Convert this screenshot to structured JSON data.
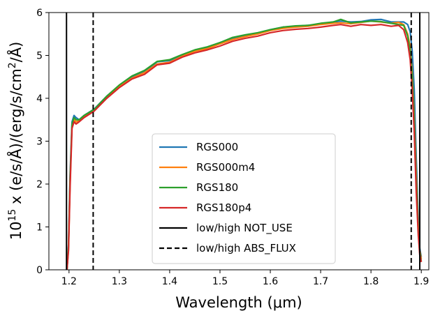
{
  "chart_data": {
    "type": "line",
    "title": "",
    "xlabel": "Wavelength (μm)",
    "ylabel": "10^15 x (e/s/Å)/(erg/s/cm^2/Å)",
    "xlim": [
      1.16,
      1.915
    ],
    "ylim": [
      0,
      6
    ],
    "xticks": [
      1.2,
      1.3,
      1.4,
      1.5,
      1.6,
      1.7,
      1.8,
      1.9
    ],
    "xtick_labels": [
      "1.2",
      "1.3",
      "1.4",
      "1.5",
      "1.6",
      "1.7",
      "1.8",
      "1.9"
    ],
    "yticks": [
      0,
      1,
      2,
      3,
      4,
      5,
      6
    ],
    "ytick_labels": [
      "0",
      "1",
      "2",
      "3",
      "4",
      "5",
      "6"
    ],
    "grid": false,
    "legend_position": "lower-center",
    "series": [
      {
        "name": "RGS000",
        "color": "#1f77b4",
        "x": [
          1.196,
          1.199,
          1.202,
          1.206,
          1.21,
          1.214,
          1.22,
          1.23,
          1.25,
          1.275,
          1.3,
          1.325,
          1.35,
          1.375,
          1.4,
          1.425,
          1.45,
          1.475,
          1.5,
          1.525,
          1.55,
          1.575,
          1.6,
          1.625,
          1.65,
          1.675,
          1.7,
          1.725,
          1.74,
          1.76,
          1.78,
          1.8,
          1.82,
          1.84,
          1.855,
          1.865,
          1.873,
          1.878,
          1.882,
          1.886,
          1.89,
          1.894,
          1.897,
          1.9
        ],
        "y": [
          0.0,
          0.6,
          2.2,
          3.45,
          3.6,
          3.55,
          3.5,
          3.6,
          3.75,
          4.05,
          4.3,
          4.5,
          4.62,
          4.85,
          4.88,
          5.0,
          5.12,
          5.18,
          5.3,
          5.4,
          5.47,
          5.52,
          5.6,
          5.66,
          5.68,
          5.7,
          5.73,
          5.78,
          5.8,
          5.78,
          5.79,
          5.83,
          5.84,
          5.78,
          5.78,
          5.78,
          5.72,
          5.55,
          5.1,
          4.2,
          2.6,
          1.2,
          0.5,
          0.3
        ]
      },
      {
        "name": "RGS000m4",
        "color": "#ff7f0e",
        "x": [
          1.196,
          1.199,
          1.202,
          1.206,
          1.21,
          1.214,
          1.22,
          1.23,
          1.25,
          1.275,
          1.3,
          1.325,
          1.35,
          1.375,
          1.4,
          1.425,
          1.45,
          1.475,
          1.5,
          1.525,
          1.55,
          1.575,
          1.6,
          1.625,
          1.65,
          1.675,
          1.7,
          1.725,
          1.74,
          1.76,
          1.78,
          1.8,
          1.82,
          1.84,
          1.855,
          1.865,
          1.873,
          1.878,
          1.882,
          1.886,
          1.89,
          1.894,
          1.897,
          1.9
        ],
        "y": [
          0.0,
          0.5,
          2.0,
          3.35,
          3.5,
          3.45,
          3.48,
          3.58,
          3.72,
          4.02,
          4.27,
          4.47,
          4.6,
          4.8,
          4.84,
          4.98,
          5.1,
          5.16,
          5.27,
          5.37,
          5.44,
          5.5,
          5.58,
          5.63,
          5.66,
          5.68,
          5.72,
          5.75,
          5.76,
          5.74,
          5.77,
          5.8,
          5.78,
          5.75,
          5.77,
          5.72,
          5.5,
          5.2,
          4.6,
          3.6,
          2.2,
          1.0,
          0.45,
          0.25
        ]
      },
      {
        "name": "RGS180",
        "color": "#2ca02c",
        "x": [
          1.196,
          1.199,
          1.202,
          1.206,
          1.21,
          1.214,
          1.22,
          1.23,
          1.25,
          1.275,
          1.3,
          1.325,
          1.35,
          1.375,
          1.4,
          1.425,
          1.45,
          1.475,
          1.5,
          1.525,
          1.55,
          1.575,
          1.6,
          1.625,
          1.65,
          1.675,
          1.7,
          1.725,
          1.74,
          1.76,
          1.78,
          1.8,
          1.82,
          1.84,
          1.855,
          1.865,
          1.873,
          1.878,
          1.882,
          1.886,
          1.89,
          1.894,
          1.897,
          1.9
        ],
        "y": [
          0.0,
          0.55,
          2.1,
          3.4,
          3.55,
          3.5,
          3.5,
          3.6,
          3.74,
          4.05,
          4.31,
          4.52,
          4.65,
          4.86,
          4.9,
          5.02,
          5.13,
          5.2,
          5.3,
          5.42,
          5.48,
          5.53,
          5.6,
          5.66,
          5.69,
          5.7,
          5.75,
          5.78,
          5.84,
          5.76,
          5.78,
          5.8,
          5.79,
          5.75,
          5.72,
          5.7,
          5.45,
          5.1,
          4.5,
          3.5,
          2.0,
          0.9,
          0.4,
          0.2
        ]
      },
      {
        "name": "RGS180p4",
        "color": "#d62728",
        "x": [
          1.196,
          1.199,
          1.202,
          1.206,
          1.21,
          1.214,
          1.22,
          1.23,
          1.25,
          1.275,
          1.3,
          1.325,
          1.35,
          1.375,
          1.4,
          1.425,
          1.45,
          1.475,
          1.5,
          1.525,
          1.55,
          1.575,
          1.6,
          1.625,
          1.65,
          1.675,
          1.7,
          1.725,
          1.74,
          1.76,
          1.78,
          1.8,
          1.82,
          1.84,
          1.855,
          1.865,
          1.873,
          1.878,
          1.882,
          1.886,
          1.89,
          1.894,
          1.897,
          1.9
        ],
        "y": [
          0.0,
          0.45,
          1.9,
          3.3,
          3.45,
          3.4,
          3.45,
          3.55,
          3.7,
          4.0,
          4.25,
          4.45,
          4.56,
          4.78,
          4.82,
          4.96,
          5.06,
          5.13,
          5.22,
          5.33,
          5.4,
          5.45,
          5.53,
          5.58,
          5.61,
          5.63,
          5.66,
          5.7,
          5.72,
          5.68,
          5.72,
          5.7,
          5.72,
          5.68,
          5.7,
          5.6,
          5.3,
          4.9,
          4.2,
          3.2,
          1.8,
          0.8,
          0.35,
          0.18
        ]
      }
    ],
    "vlines": [
      {
        "name": "low/high NOT_USE",
        "style": "solid",
        "color": "#000000",
        "x": [
          1.195,
          1.897
        ]
      },
      {
        "name": "low/high ABS_FLUX",
        "style": "dashed",
        "color": "#000000",
        "x": [
          1.248,
          1.88
        ]
      }
    ]
  }
}
